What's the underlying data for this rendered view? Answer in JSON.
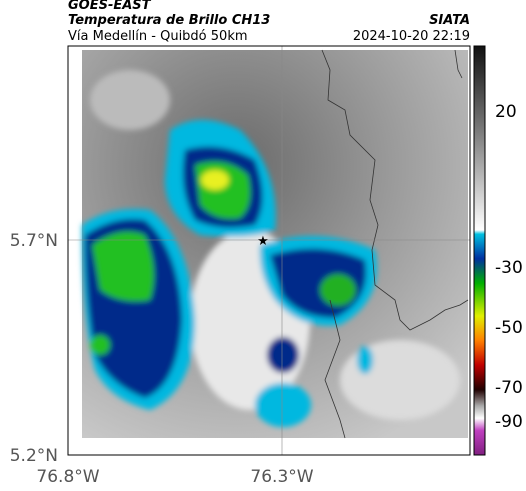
{
  "header": {
    "source": "GOES-EAST",
    "product": "Temperatura de Brillo CH13",
    "route": "Vía Medellín - Quibdó 50km",
    "brand": "SIATA",
    "timestamp": "2024-10-20 22:19"
  },
  "map": {
    "lat_labels": [
      "5.7°N",
      "5.2°N"
    ],
    "lon_labels": [
      "76.8°W",
      "76.3°W"
    ],
    "colorbar_ticks": [
      20,
      -30,
      -50,
      -70,
      -90
    ]
  }
}
